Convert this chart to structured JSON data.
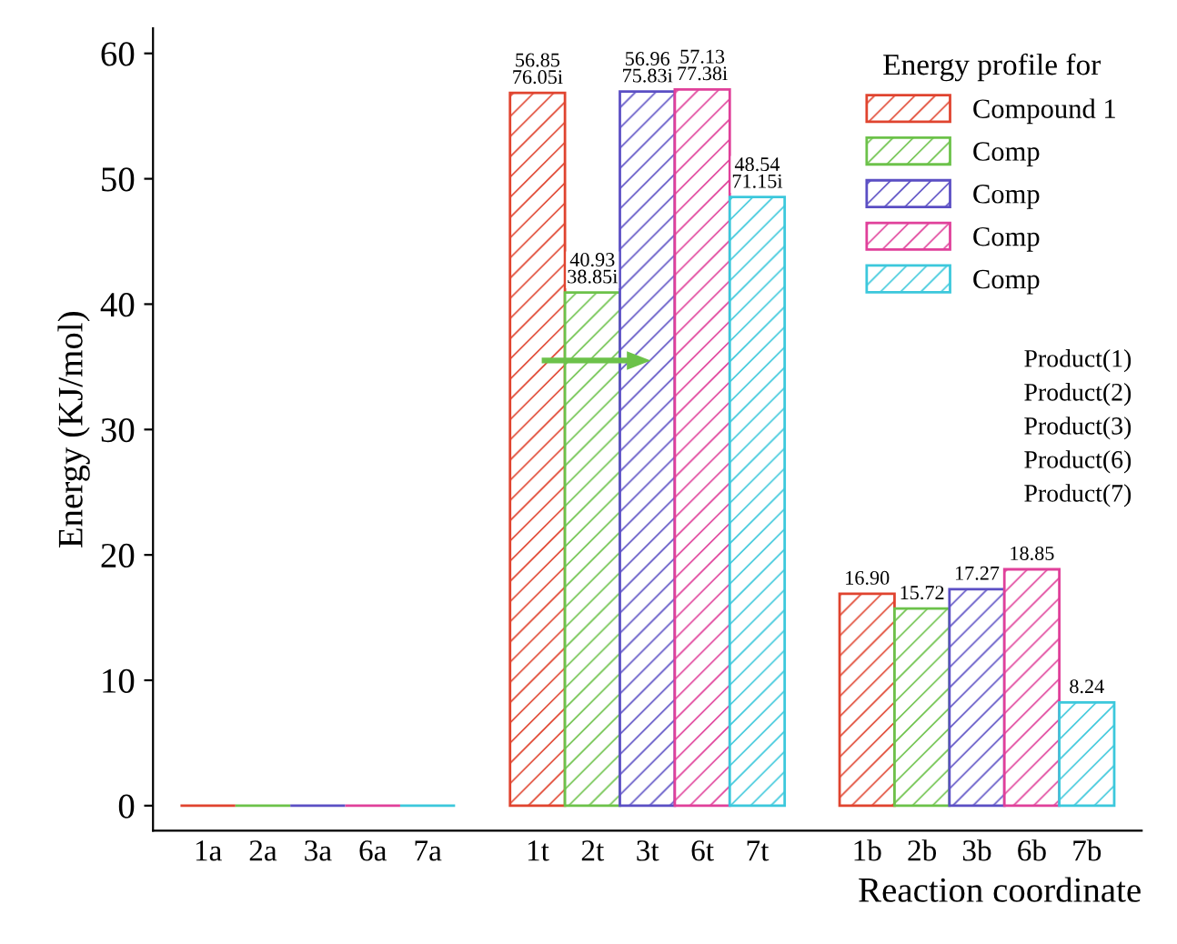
{
  "chart_data": {
    "type": "bar",
    "xlabel": "Reaction coordinate",
    "ylabel": "Energy (KJ/mol)",
    "legend_title": "Energy profile for",
    "categories": [
      "1a",
      "2a",
      "3a",
      "6a",
      "7a",
      null,
      "1t",
      "2t",
      "3t",
      "6t",
      "7t",
      null,
      "1b",
      "2b",
      "3b",
      "6b",
      "7b"
    ],
    "series": [
      {
        "name": "Compound 1",
        "color": "#e0442f",
        "values": [
          0,
          null,
          null,
          null,
          null,
          null,
          56.85,
          null,
          null,
          null,
          null,
          null,
          16.9,
          null,
          null,
          null,
          null
        ],
        "value_labels": [
          null,
          null,
          null,
          null,
          null,
          null,
          "56.85\n76.05i",
          null,
          null,
          null,
          null,
          null,
          "16.90",
          null,
          null,
          null,
          null
        ]
      },
      {
        "name": "Comp",
        "color": "#6cc24a",
        "values": [
          null,
          0,
          null,
          null,
          null,
          null,
          null,
          40.93,
          null,
          null,
          null,
          null,
          null,
          15.72,
          null,
          null,
          null
        ],
        "value_labels": [
          null,
          null,
          null,
          null,
          null,
          null,
          null,
          "40.93\n38.85i",
          null,
          null,
          null,
          null,
          null,
          "15.72",
          null,
          null,
          null
        ]
      },
      {
        "name": "Comp",
        "color": "#5b4fc4",
        "values": [
          null,
          null,
          0,
          null,
          null,
          null,
          null,
          null,
          56.96,
          null,
          null,
          null,
          null,
          null,
          17.27,
          null,
          null
        ],
        "value_labels": [
          null,
          null,
          null,
          null,
          null,
          null,
          null,
          null,
          "56.96\n75.83i",
          null,
          null,
          null,
          null,
          null,
          "17.27",
          null,
          null
        ]
      },
      {
        "name": "Comp",
        "color": "#e0409a",
        "values": [
          null,
          null,
          null,
          0,
          null,
          null,
          null,
          null,
          null,
          57.13,
          null,
          null,
          null,
          null,
          null,
          18.85,
          null
        ],
        "value_labels": [
          null,
          null,
          null,
          null,
          null,
          null,
          null,
          null,
          null,
          "57.13\n77.38i",
          null,
          null,
          null,
          null,
          null,
          "18.85",
          null
        ]
      },
      {
        "name": "Comp",
        "color": "#3cc8dc",
        "values": [
          null,
          null,
          null,
          null,
          0,
          null,
          null,
          null,
          null,
          null,
          48.54,
          null,
          null,
          null,
          null,
          null,
          8.24
        ],
        "value_labels": [
          null,
          null,
          null,
          null,
          null,
          null,
          null,
          null,
          null,
          null,
          "48.54\n71.15i",
          null,
          null,
          null,
          null,
          null,
          "8.24"
        ]
      }
    ],
    "ylim": [
      -2,
      62
    ],
    "yticks": [
      0,
      10,
      20,
      30,
      40,
      50,
      60
    ],
    "annotations": [
      "Product(1)",
      "Product(2)",
      "Product(3)",
      "Product(6)",
      "Product(7)"
    ],
    "legend": "top right",
    "grid": false
  }
}
